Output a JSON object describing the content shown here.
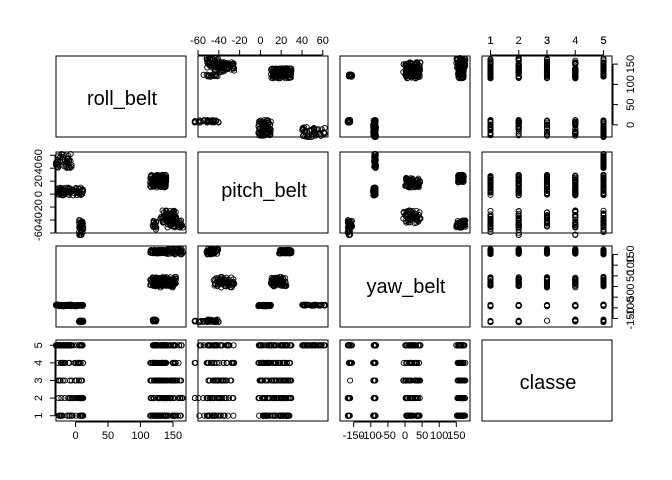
{
  "chart_data": {
    "type": "scatter",
    "title": "",
    "variables": [
      "roll_belt",
      "pitch_belt",
      "yaw_belt",
      "classe"
    ],
    "axes": {
      "roll_belt": {
        "range": [
          -30,
          170
        ],
        "ticks": [
          0,
          50,
          100,
          150
        ]
      },
      "pitch_belt": {
        "range": [
          -60,
          65
        ],
        "ticks": [
          -60,
          -20,
          20,
          60
        ],
        "ticks_alt": [
          -40,
          0,
          40
        ]
      },
      "yaw_belt": {
        "range": [
          -190,
          190
        ],
        "ticks": [
          -150,
          -50,
          50,
          150
        ],
        "ticks_alt": [
          -100,
          0,
          100
        ]
      },
      "classe": {
        "range": [
          0.7,
          5.3
        ],
        "ticks": [
          1,
          2,
          3,
          4,
          5
        ]
      }
    },
    "clusters": [
      {
        "roll": [
          -30,
          -5
        ],
        "pitch": [
          40,
          62
        ],
        "yaw": [
          -90,
          -85
        ],
        "classe": [
          5,
          5
        ],
        "n": 40
      },
      {
        "roll": [
          -28,
          12
        ],
        "pitch": [
          -2,
          10
        ],
        "yaw": [
          -93,
          -86
        ],
        "classe": [
          1,
          5
        ],
        "n": 80
      },
      {
        "roll": [
          5,
          12
        ],
        "pitch": [
          -65,
          -40
        ],
        "yaw": [
          -168,
          -160
        ],
        "classe": [
          1,
          5
        ],
        "n": 30
      },
      {
        "roll": [
          115,
          140
        ],
        "pitch": [
          18,
          30
        ],
        "yaw": [
          155,
          172
        ],
        "classe": [
          1,
          5
        ],
        "n": 70
      },
      {
        "roll": [
          115,
          140
        ],
        "pitch": [
          10,
          25
        ],
        "yaw": [
          0,
          45
        ],
        "classe": [
          1,
          5
        ],
        "n": 70
      },
      {
        "roll": [
          130,
          155
        ],
        "pitch": [
          -45,
          -25
        ],
        "yaw": [
          -5,
          45
        ],
        "classe": [
          1,
          5
        ],
        "n": 60
      },
      {
        "roll": [
          140,
          165
        ],
        "pitch": [
          -52,
          -40
        ],
        "yaw": [
          150,
          178
        ],
        "classe": [
          1,
          5
        ],
        "n": 40
      },
      {
        "roll": [
          115,
          125
        ],
        "pitch": [
          -55,
          -40
        ],
        "yaw": [
          -165,
          -155
        ],
        "classe": [
          4,
          5
        ],
        "n": 15
      }
    ],
    "labels": {
      "roll_belt": "roll_belt",
      "pitch_belt": "pitch_belt",
      "yaw_belt": "yaw_belt",
      "classe": "classe"
    },
    "tick_labels": {
      "roll_belt": [
        "0",
        "50",
        "100",
        "150"
      ],
      "pitch_belt_a": [
        "-60",
        "-20",
        "20",
        "60"
      ],
      "pitch_belt_b": [
        "-40",
        "0",
        "40"
      ],
      "yaw_belt_a": [
        "-150",
        "-50",
        "50",
        "150"
      ],
      "yaw_belt_b": [
        "-100",
        "0",
        "100"
      ],
      "classe_a": [
        "1",
        "3",
        "5"
      ],
      "classe_b": [
        "1",
        "2",
        "3",
        "4",
        "5"
      ]
    }
  }
}
